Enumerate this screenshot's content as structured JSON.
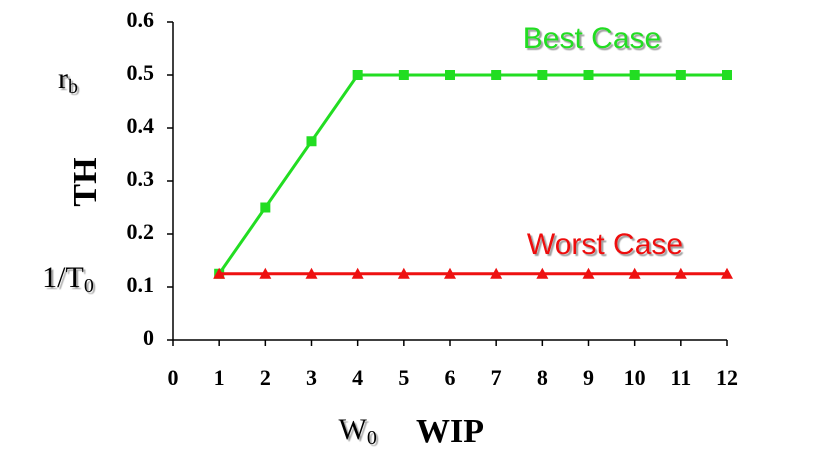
{
  "chart_data": {
    "type": "line",
    "ylabel": "TH",
    "xlabel": "WIP",
    "x": [
      1,
      2,
      3,
      4,
      5,
      6,
      7,
      8,
      9,
      10,
      11,
      12
    ],
    "series": [
      {
        "name": "Best Case",
        "color": "#22dd22",
        "marker": "square",
        "values": [
          0.125,
          0.25,
          0.375,
          0.5,
          0.5,
          0.5,
          0.5,
          0.5,
          0.5,
          0.5,
          0.5,
          0.5
        ]
      },
      {
        "name": "Worst Case",
        "color": "#ee1111",
        "marker": "triangle",
        "values": [
          0.125,
          0.125,
          0.125,
          0.125,
          0.125,
          0.125,
          0.125,
          0.125,
          0.125,
          0.125,
          0.125,
          0.125
        ]
      }
    ],
    "annotations": [
      {
        "text": "r",
        "sub": "b",
        "axis": "y",
        "value": 0.5
      },
      {
        "text": "1/T",
        "sub": "0",
        "axis": "y",
        "value": 0.125
      },
      {
        "text": "W",
        "sub": "0",
        "axis": "x",
        "value": 4
      }
    ],
    "xlim": [
      0,
      12
    ],
    "xticks": [
      0,
      1,
      2,
      3,
      4,
      5,
      6,
      7,
      8,
      9,
      10,
      11,
      12
    ],
    "ylim": [
      0,
      0.6
    ],
    "yticks": [
      0,
      0.1,
      0.2,
      0.3,
      0.4,
      0.5,
      0.6
    ]
  }
}
